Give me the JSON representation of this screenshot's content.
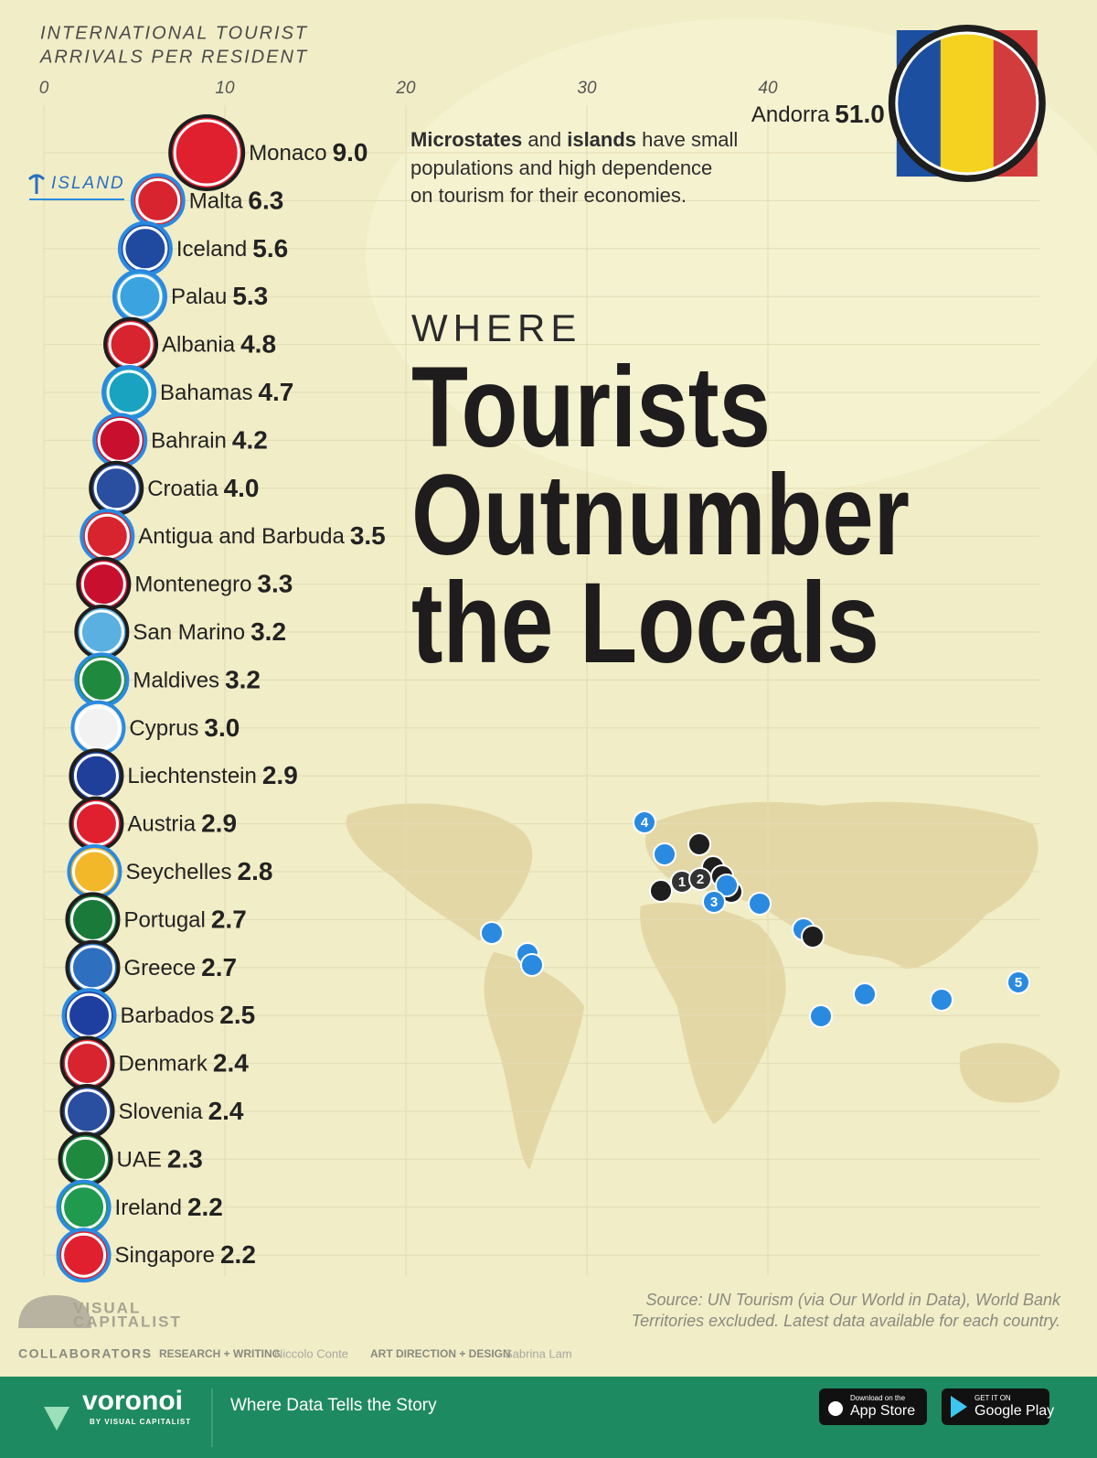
{
  "chart_data": {
    "type": "bubble",
    "x_label": [
      "INTERNATIONAL TOURIST",
      "ARRIVALS PER RESIDENT"
    ],
    "subtitle": "WHERE",
    "title": [
      "Tourists",
      "Outnumber",
      "the Locals"
    ],
    "annotation": [
      "Microstates",
      " and ",
      "islands",
      " have small",
      "populations and high dependence",
      "on tourism for their economies."
    ],
    "island_legend": "ISLAND",
    "xlim": [
      0,
      55
    ],
    "xticks": [
      0,
      10,
      20,
      30,
      40
    ],
    "grid": true,
    "categories": [
      "Andorra",
      "Monaco",
      "Malta",
      "Iceland",
      "Palau",
      "Albania",
      "Bahamas",
      "Bahrain",
      "Croatia",
      "Antigua and Barbuda",
      "Montenegro",
      "San Marino",
      "Maldives",
      "Cyprus",
      "Liechtenstein",
      "Austria",
      "Seychelles",
      "Portugal",
      "Greece",
      "Barbados",
      "Denmark",
      "Slovenia",
      "UAE",
      "Ireland",
      "Singapore"
    ],
    "values": [
      51.0,
      9.0,
      6.3,
      5.6,
      5.3,
      4.8,
      4.7,
      4.2,
      4.0,
      3.5,
      3.3,
      3.2,
      3.2,
      3.0,
      2.9,
      2.9,
      2.8,
      2.7,
      2.7,
      2.5,
      2.4,
      2.4,
      2.3,
      2.2,
      2.2
    ],
    "value_labels": [
      "51.0",
      "9.0",
      "6.3",
      "5.6",
      "5.3",
      "4.8",
      "4.7",
      "4.2",
      "4.0",
      "3.5",
      "3.3",
      "3.2",
      "3.2",
      "3.0",
      "2.9",
      "2.9",
      "2.8",
      "2.7",
      "2.7",
      "2.5",
      "2.4",
      "2.4",
      "2.3",
      "2.2",
      "2.2"
    ],
    "island": [
      false,
      false,
      true,
      true,
      true,
      false,
      true,
      true,
      false,
      true,
      false,
      false,
      true,
      true,
      false,
      false,
      true,
      false,
      false,
      true,
      false,
      false,
      false,
      true,
      true
    ],
    "colors": [
      "#f4d21f",
      "#e0202f",
      "#d8242f",
      "#1f4aa0",
      "#3ba4e0",
      "#d8242f",
      "#1aa3c0",
      "#c8102e",
      "#2a4ea0",
      "#d8242f",
      "#c8102e",
      "#5ab0e0",
      "#1f8a3e",
      "#f2f2f2",
      "#1f3f9a",
      "#e0202f",
      "#f2b82a",
      "#1a7a3a",
      "#2e6fc0",
      "#1f3fa0",
      "#d8242f",
      "#2a4ea0",
      "#1f8a3e",
      "#1f9a4e",
      "#e0202f"
    ],
    "island_color": "#2a8ae0",
    "mainland_color": "#1e1e1e",
    "map_labels": [
      "1",
      "2",
      "3",
      "4",
      "5"
    ],
    "source": [
      "Source: UN Tourism (via Our World in Data), World Bank",
      "Territories excluded. Latest data available for each country."
    ]
  },
  "footer": {
    "brand": [
      "VISUAL",
      "CAPITALIST"
    ],
    "collaborators": "COLLABORATORS",
    "roles": [
      "RESEARCH + WRITING",
      "ART DIRECTION + DESIGN"
    ],
    "names": [
      "Niccolo Conte",
      "Sabrina Lam"
    ],
    "logo": "voronoi",
    "logo_sub": "BY VISUAL CAPITALIST",
    "tagline": "Where Data Tells the Story",
    "app_store": [
      "Download on the",
      "App Store"
    ],
    "google_play": [
      "GET IT ON",
      "Google Play"
    ]
  }
}
